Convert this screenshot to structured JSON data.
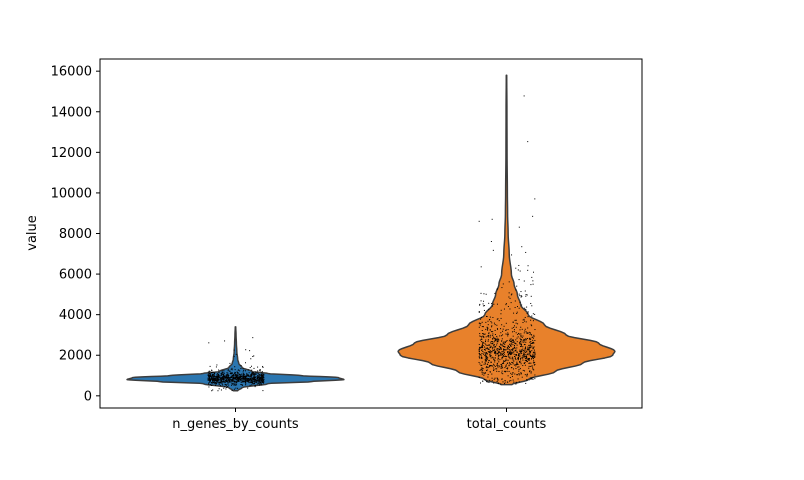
{
  "chart_data": {
    "type": "violin",
    "title": "",
    "xlabel": "",
    "ylabel": "value",
    "ylim": [
      -600,
      16600
    ],
    "yticks": [
      0,
      2000,
      4000,
      6000,
      8000,
      10000,
      12000,
      14000,
      16000
    ],
    "grid": false,
    "legend": "none",
    "categories": [
      "n_genes_by_counts",
      "total_counts"
    ],
    "violins": [
      {
        "category": "n_genes_by_counts",
        "color": "#2b76b0",
        "min": 250,
        "max": 3400,
        "median": 800,
        "profile": [
          [
            250,
            0.02
          ],
          [
            400,
            0.06
          ],
          [
            600,
            0.3
          ],
          [
            700,
            0.7
          ],
          [
            800,
            1.0
          ],
          [
            900,
            0.95
          ],
          [
            1000,
            0.6
          ],
          [
            1100,
            0.3
          ],
          [
            1200,
            0.15
          ],
          [
            1400,
            0.06
          ],
          [
            1600,
            0.03
          ],
          [
            1800,
            0.02
          ],
          [
            2200,
            0.012
          ],
          [
            2600,
            0.008
          ],
          [
            3000,
            0.005
          ],
          [
            3400,
            0.002
          ]
        ]
      },
      {
        "category": "total_counts",
        "color": "#e8812b",
        "min": 550,
        "max": 15800,
        "median": 2100,
        "profile": [
          [
            550,
            0.05
          ],
          [
            800,
            0.2
          ],
          [
            1200,
            0.45
          ],
          [
            1600,
            0.7
          ],
          [
            2000,
            0.98
          ],
          [
            2200,
            1.0
          ],
          [
            2600,
            0.85
          ],
          [
            3000,
            0.55
          ],
          [
            3500,
            0.35
          ],
          [
            4000,
            0.2
          ],
          [
            4500,
            0.13
          ],
          [
            5000,
            0.1
          ],
          [
            5500,
            0.07
          ],
          [
            6000,
            0.045
          ],
          [
            7000,
            0.025
          ],
          [
            8000,
            0.015
          ],
          [
            9000,
            0.01
          ],
          [
            10000,
            0.008
          ],
          [
            12000,
            0.005
          ],
          [
            14000,
            0.004
          ],
          [
            15800,
            0.002
          ]
        ]
      }
    ]
  }
}
